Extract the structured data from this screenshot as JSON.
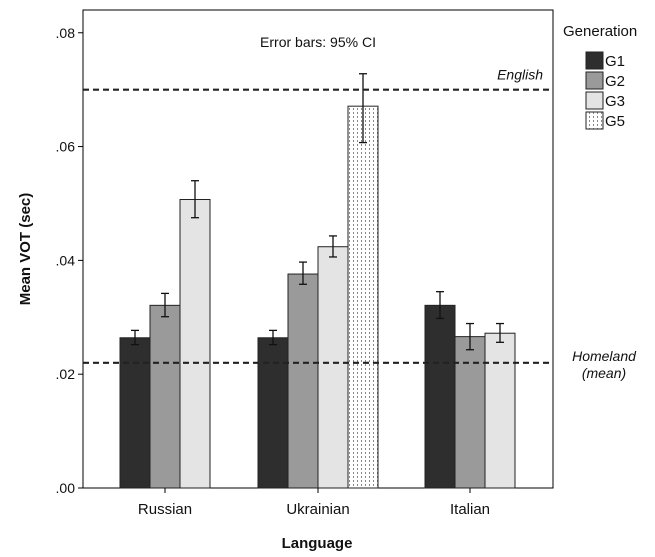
{
  "chart_data": {
    "type": "bar",
    "title": "",
    "xlabel": "Language",
    "ylabel": "Mean VOT (sec)",
    "ylim": [
      0,
      0.084
    ],
    "yticks": [
      0,
      0.02,
      0.04,
      0.06,
      0.08
    ],
    "ytick_labels": [
      ".00",
      ".02",
      ".04",
      ".06",
      ".08"
    ],
    "grid": false,
    "legend_position": "right",
    "legend_title": "Generation",
    "annotation": "Error bars: 95% CI",
    "categories": [
      "Russian",
      "Ukrainian",
      "Italian"
    ],
    "series": [
      {
        "name": "G1",
        "color": "#2e2e2e",
        "pattern": "solid",
        "values": [
          0.0264,
          0.0264,
          0.0321
        ],
        "ci_low": [
          0.0252,
          0.0252,
          0.0298
        ],
        "ci_high": [
          0.0277,
          0.0277,
          0.0345
        ]
      },
      {
        "name": "G2",
        "color": "#9a9a9a",
        "pattern": "solid",
        "values": [
          0.0321,
          0.0376,
          0.0266
        ],
        "ci_low": [
          0.0301,
          0.0358,
          0.0243
        ],
        "ci_high": [
          0.0342,
          0.0397,
          0.0289
        ]
      },
      {
        "name": "G3",
        "color": "#e4e4e4",
        "pattern": "solid",
        "values": [
          0.0507,
          0.0424,
          0.0272
        ],
        "ci_low": [
          0.0475,
          0.0406,
          0.0256
        ],
        "ci_high": [
          0.054,
          0.0443,
          0.0289
        ]
      },
      {
        "name": "G5",
        "color": "#ffffff",
        "pattern": "dotted",
        "values": [
          null,
          0.0671,
          null
        ],
        "ci_low": [
          null,
          0.0607,
          null
        ],
        "ci_high": [
          null,
          0.0728,
          null
        ]
      }
    ],
    "reference_lines": [
      {
        "label": "English",
        "value": 0.07
      },
      {
        "label": "Homeland (mean)",
        "value": 0.022
      }
    ]
  }
}
